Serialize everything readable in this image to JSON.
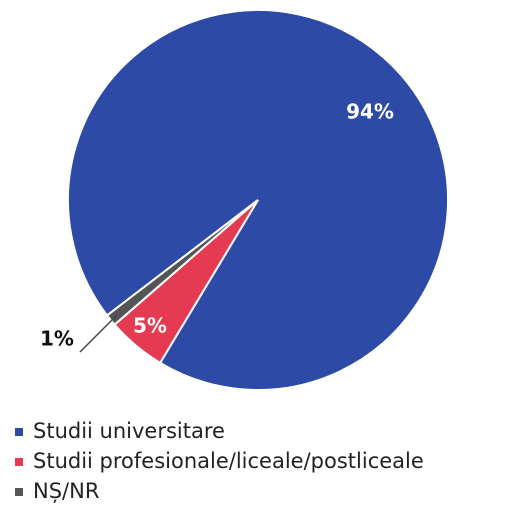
{
  "chart_data": {
    "type": "pie",
    "categories": [
      "Studii universitare",
      "Studii profesionale/liceale/postliceale",
      "NȘ/NR"
    ],
    "values": [
      94,
      5,
      1
    ],
    "value_labels": [
      "94%",
      "5%",
      "1%"
    ],
    "colors": [
      "#2c4aa6",
      "#e43a52",
      "#555555"
    ],
    "legend": "bottom"
  }
}
